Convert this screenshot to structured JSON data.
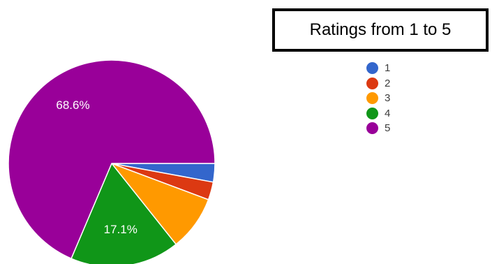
{
  "chart_data": {
    "type": "pie",
    "title": "Ratings from 1 to 5",
    "legend_position": "right",
    "categories": [
      "1",
      "2",
      "3",
      "4",
      "5"
    ],
    "values": [
      2.9,
      2.8,
      8.6,
      17.1,
      68.6
    ],
    "colors": [
      "#3366cc",
      "#dc3912",
      "#ff9900",
      "#109618",
      "#990099"
    ],
    "data_labels": [
      "",
      "",
      "",
      "17.1%",
      "68.6%"
    ]
  }
}
